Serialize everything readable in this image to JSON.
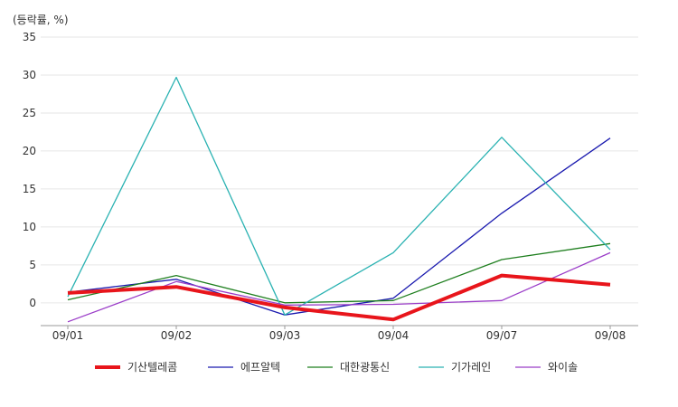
{
  "chart_data": {
    "type": "line",
    "unit_label": "(등락률, %)",
    "categories": [
      "09/01",
      "09/02",
      "09/03",
      "09/04",
      "09/07",
      "09/08"
    ],
    "ylim": [
      -3,
      35
    ],
    "yticks": [
      0,
      5,
      10,
      15,
      20,
      25,
      30,
      35
    ],
    "grid": true,
    "legend_position": "bottom",
    "series": [
      {
        "name": "기산텔레콤",
        "color": "#e8151b",
        "emphasis": true,
        "values": [
          1.3,
          2.1,
          -0.6,
          -2.2,
          3.6,
          2.4
        ]
      },
      {
        "name": "에프알텍",
        "color": "#1a1aaf",
        "emphasis": false,
        "values": [
          1.4,
          3.1,
          -1.6,
          0.6,
          11.8,
          21.7
        ]
      },
      {
        "name": "대한광통신",
        "color": "#1f7f1f",
        "emphasis": false,
        "values": [
          0.4,
          3.6,
          0.0,
          0.3,
          5.7,
          7.8
        ]
      },
      {
        "name": "기가레인",
        "color": "#2ab2b2",
        "emphasis": false,
        "values": [
          0.8,
          29.7,
          -1.6,
          6.6,
          21.8,
          7.0
        ]
      },
      {
        "name": "와이솔",
        "color": "#9b3dc8",
        "emphasis": false,
        "values": [
          -2.5,
          2.8,
          -0.3,
          -0.2,
          0.3,
          6.6
        ]
      }
    ]
  }
}
